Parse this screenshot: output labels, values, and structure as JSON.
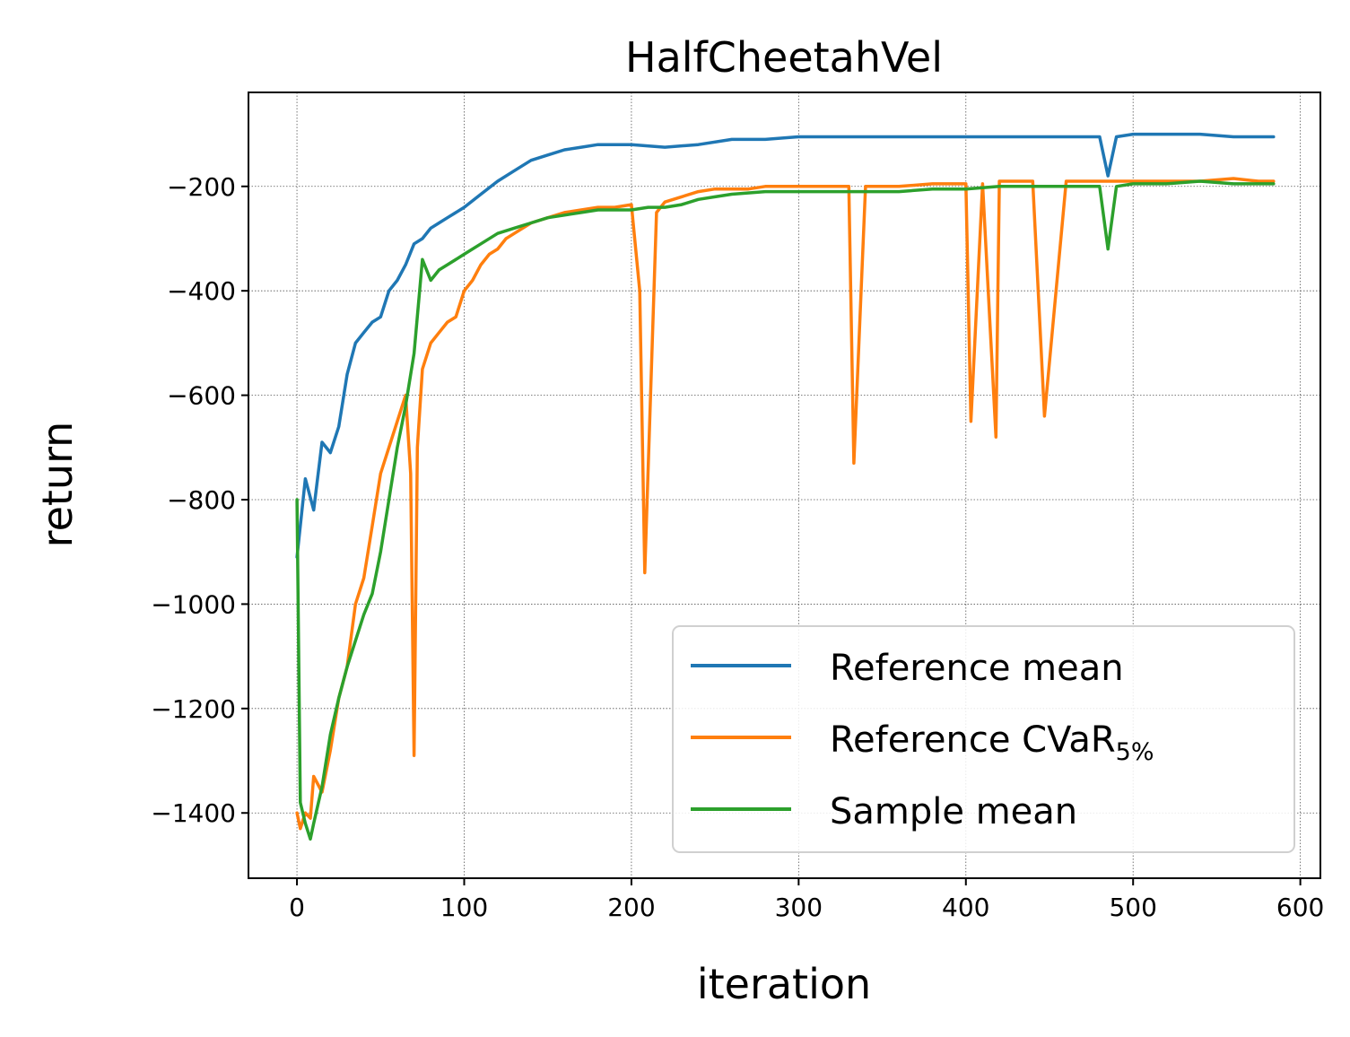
{
  "chart_data": {
    "type": "line",
    "title": "HalfCheetahVel",
    "xlabel": "iteration",
    "ylabel": "return",
    "xlim": [
      -29,
      612
    ],
    "ylim": [
      -1525,
      -20
    ],
    "xticks": [
      0,
      100,
      200,
      300,
      400,
      500,
      600
    ],
    "yticks": [
      -200,
      -400,
      -600,
      -800,
      -1000,
      -1200,
      -1400
    ],
    "xtick_labels": [
      "0",
      "100",
      "200",
      "300",
      "400",
      "500",
      "600"
    ],
    "ytick_labels": [
      "−200",
      "−400",
      "−600",
      "−800",
      "−1000",
      "−1200",
      "−1400"
    ],
    "grid": true,
    "legend": {
      "position": "bottom-right"
    },
    "series": [
      {
        "name": "Reference mean",
        "color": "#1f77b4",
        "x": [
          0,
          5,
          10,
          15,
          20,
          25,
          30,
          35,
          40,
          45,
          50,
          55,
          60,
          65,
          70,
          75,
          80,
          85,
          90,
          95,
          100,
          110,
          120,
          130,
          140,
          150,
          160,
          170,
          180,
          190,
          200,
          220,
          240,
          260,
          280,
          300,
          320,
          340,
          360,
          380,
          400,
          420,
          440,
          460,
          480,
          485,
          490,
          500,
          520,
          540,
          560,
          584
        ],
        "y": [
          -910,
          -760,
          -820,
          -690,
          -710,
          -660,
          -560,
          -500,
          -480,
          -460,
          -450,
          -400,
          -380,
          -350,
          -310,
          -300,
          -280,
          -270,
          -260,
          -250,
          -240,
          -215,
          -190,
          -170,
          -150,
          -140,
          -130,
          -125,
          -120,
          -120,
          -120,
          -125,
          -120,
          -110,
          -110,
          -105,
          -105,
          -105,
          -105,
          -105,
          -105,
          -105,
          -105,
          -105,
          -105,
          -180,
          -105,
          -100,
          -100,
          -100,
          -105,
          -105
        ]
      },
      {
        "name": "Reference CVaR",
        "name_subscript": "5%",
        "color": "#ff7f0e",
        "x": [
          0,
          2,
          5,
          8,
          10,
          15,
          20,
          25,
          30,
          35,
          40,
          45,
          50,
          55,
          60,
          65,
          68,
          70,
          72,
          75,
          80,
          85,
          90,
          95,
          100,
          105,
          110,
          115,
          120,
          125,
          130,
          140,
          150,
          160,
          170,
          180,
          190,
          200,
          205,
          208,
          215,
          220,
          230,
          240,
          250,
          260,
          270,
          280,
          290,
          300,
          310,
          320,
          330,
          333,
          340,
          350,
          360,
          380,
          400,
          403,
          410,
          418,
          420,
          440,
          447,
          460,
          480,
          500,
          520,
          540,
          560,
          575,
          584
        ],
        "y": [
          -1400,
          -1430,
          -1400,
          -1410,
          -1330,
          -1360,
          -1280,
          -1180,
          -1120,
          -1000,
          -950,
          -850,
          -750,
          -700,
          -650,
          -600,
          -750,
          -1290,
          -700,
          -550,
          -500,
          -480,
          -460,
          -450,
          -400,
          -380,
          -350,
          -330,
          -320,
          -300,
          -290,
          -270,
          -260,
          -250,
          -245,
          -240,
          -240,
          -235,
          -400,
          -940,
          -250,
          -230,
          -220,
          -210,
          -205,
          -205,
          -205,
          -200,
          -200,
          -200,
          -200,
          -200,
          -200,
          -730,
          -200,
          -200,
          -200,
          -195,
          -195,
          -650,
          -195,
          -680,
          -190,
          -190,
          -640,
          -190,
          -190,
          -190,
          -190,
          -190,
          -185,
          -190,
          -190
        ]
      },
      {
        "name": "Sample mean",
        "color": "#2ca02c",
        "x": [
          0,
          2,
          5,
          8,
          10,
          15,
          20,
          25,
          30,
          35,
          40,
          45,
          50,
          55,
          60,
          65,
          70,
          75,
          80,
          85,
          90,
          95,
          100,
          110,
          120,
          130,
          140,
          150,
          160,
          170,
          180,
          190,
          200,
          210,
          220,
          230,
          240,
          250,
          260,
          280,
          300,
          320,
          340,
          360,
          380,
          400,
          420,
          440,
          460,
          480,
          485,
          490,
          500,
          520,
          540,
          560,
          584
        ],
        "y": [
          -800,
          -1380,
          -1420,
          -1450,
          -1420,
          -1350,
          -1250,
          -1180,
          -1120,
          -1070,
          -1020,
          -980,
          -900,
          -800,
          -700,
          -620,
          -520,
          -340,
          -380,
          -360,
          -350,
          -340,
          -330,
          -310,
          -290,
          -280,
          -270,
          -260,
          -255,
          -250,
          -245,
          -245,
          -245,
          -240,
          -240,
          -235,
          -225,
          -220,
          -215,
          -210,
          -210,
          -210,
          -210,
          -210,
          -205,
          -205,
          -200,
          -200,
          -200,
          -200,
          -320,
          -200,
          -195,
          -195,
          -190,
          -195,
          -195
        ]
      }
    ]
  }
}
